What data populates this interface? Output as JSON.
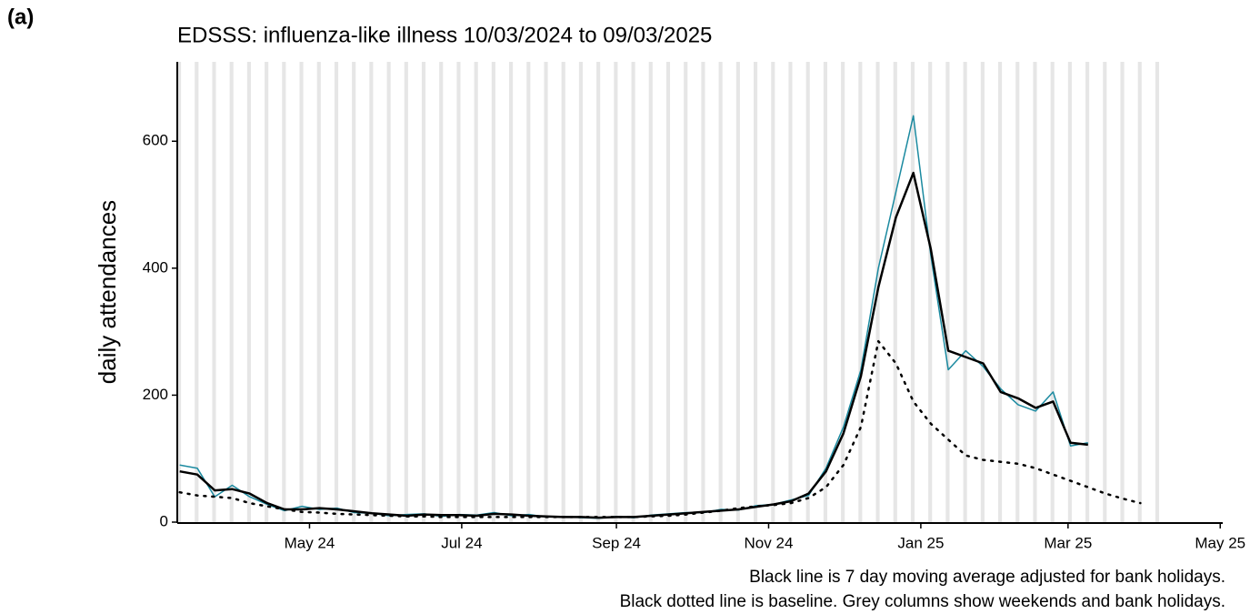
{
  "panel_label": "(a)",
  "chart_data": {
    "type": "line",
    "title": "EDSSS: influenza-like illness 10/03/2024 to 09/03/2025",
    "y_label": "daily attendances",
    "notes": [
      "Black line is 7 day moving average adjusted for bank holidays.",
      "Black dotted line is baseline. Grey columns show weekends and bank holidays."
    ],
    "x": [
      "2024-03-10",
      "2024-03-17",
      "2024-03-24",
      "2024-03-31",
      "2024-04-07",
      "2024-04-14",
      "2024-04-21",
      "2024-04-28",
      "2024-05-05",
      "2024-05-12",
      "2024-05-19",
      "2024-05-26",
      "2024-06-02",
      "2024-06-09",
      "2024-06-16",
      "2024-06-23",
      "2024-06-30",
      "2024-07-07",
      "2024-07-14",
      "2024-07-21",
      "2024-07-28",
      "2024-08-04",
      "2024-08-11",
      "2024-08-18",
      "2024-08-25",
      "2024-09-01",
      "2024-09-08",
      "2024-09-15",
      "2024-09-22",
      "2024-09-29",
      "2024-10-06",
      "2024-10-13",
      "2024-10-20",
      "2024-10-27",
      "2024-11-03",
      "2024-11-10",
      "2024-11-17",
      "2024-11-24",
      "2024-12-01",
      "2024-12-08",
      "2024-12-15",
      "2024-12-22",
      "2024-12-29",
      "2025-01-05",
      "2025-01-12",
      "2025-01-19",
      "2025-01-26",
      "2025-02-02",
      "2025-02-09",
      "2025-02-16",
      "2025-02-23",
      "2025-03-02",
      "2025-03-09",
      "2025-03-16",
      "2025-03-23",
      "2025-03-30"
    ],
    "series": [
      {
        "color": "#1b8aa0",
        "style": "solid",
        "width": 1.5,
        "values": [
          90,
          85,
          40,
          58,
          40,
          28,
          18,
          25,
          20,
          22,
          15,
          14,
          10,
          12,
          13,
          9,
          12,
          11,
          15,
          10,
          12,
          8,
          9,
          7,
          6,
          9,
          7,
          11,
          13,
          15,
          15,
          20,
          19,
          26,
          28,
          35,
          42,
          85,
          150,
          240,
          400,
          520,
          640,
          420,
          240,
          270,
          245,
          210,
          185,
          175,
          205,
          120,
          125,
          null,
          null,
          null
        ]
      },
      {
        "color": "#000000",
        "style": "solid",
        "width": 2.5,
        "values": [
          80,
          75,
          50,
          52,
          45,
          30,
          20,
          20,
          22,
          20,
          17,
          14,
          12,
          10,
          12,
          11,
          11,
          10,
          13,
          12,
          10,
          9,
          8,
          8,
          7,
          8,
          8,
          10,
          12,
          14,
          16,
          18,
          20,
          24,
          28,
          33,
          45,
          80,
          140,
          230,
          370,
          480,
          550,
          430,
          270,
          260,
          250,
          205,
          195,
          180,
          190,
          125,
          122,
          null,
          null,
          null
        ]
      },
      {
        "color": "#000000",
        "style": "dotted",
        "width": 2.5,
        "values": [
          47,
          42,
          40,
          38,
          30,
          25,
          20,
          16,
          15,
          13,
          12,
          11,
          10,
          9,
          9,
          8,
          8,
          8,
          8,
          8,
          8,
          8,
          8,
          8,
          8,
          8,
          8,
          9,
          10,
          12,
          15,
          18,
          22,
          25,
          27,
          30,
          38,
          55,
          90,
          150,
          285,
          250,
          190,
          155,
          130,
          105,
          98,
          95,
          92,
          85,
          75,
          65,
          55,
          45,
          37,
          30
        ]
      }
    ],
    "xlim": [
      "2024-03-09",
      "2025-05-02"
    ],
    "xticks": [
      {
        "value": "2024-05-01",
        "label": "May 24"
      },
      {
        "value": "2024-07-01",
        "label": "Jul 24"
      },
      {
        "value": "2024-09-01",
        "label": "Sep 24"
      },
      {
        "value": "2024-11-01",
        "label": "Nov 24"
      },
      {
        "value": "2025-01-01",
        "label": "Jan 25"
      },
      {
        "value": "2025-03-01",
        "label": "Mar 25"
      },
      {
        "value": "2025-05-01",
        "label": "May 25"
      }
    ],
    "ylim": [
      0,
      725
    ],
    "yticks": [
      0,
      200,
      400,
      600
    ],
    "grid": false,
    "weekend_shading": true
  }
}
